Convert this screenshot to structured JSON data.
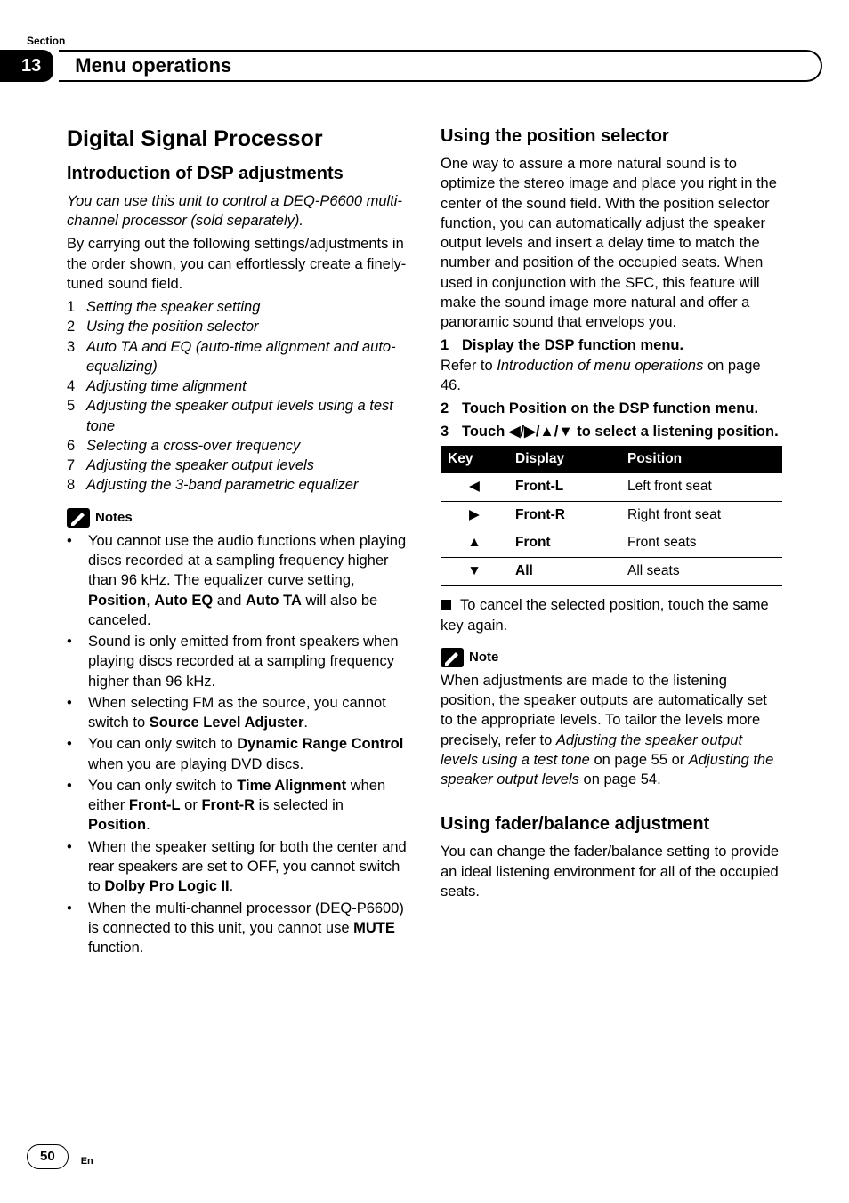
{
  "header": {
    "section_label": "Section",
    "section_number": "13",
    "title": "Menu operations"
  },
  "left": {
    "h1": "Digital Signal Processor",
    "h2": "Introduction of DSP adjustments",
    "intro_italic": "You can use this unit to control a DEQ-P6600 multi-channel processor (sold separately).",
    "intro_body": "By carrying out the following settings/adjustments in the order shown, you can effortlessly create a finely-tuned sound field.",
    "numbered": [
      "Setting the speaker setting",
      "Using the position selector",
      "Auto TA and EQ (auto-time alignment and auto-equalizing)",
      "Adjusting time alignment",
      "Adjusting the speaker output levels using a test tone",
      "Selecting a cross-over frequency",
      "Adjusting the speaker output levels",
      "Adjusting the 3-band parametric equalizer"
    ],
    "notes_label": "Notes",
    "notes": [
      {
        "pre": "You cannot use the audio functions when playing discs recorded at a sampling frequency higher than 96 kHz. The equalizer curve setting, ",
        "b1": "Position",
        "mid1": ", ",
        "b2": "Auto EQ",
        "mid2": " and ",
        "b3": "Auto TA",
        "post": " will also be canceled."
      },
      {
        "plain": "Sound is only emitted from front speakers when playing discs recorded at a sampling frequency higher than 96 kHz."
      },
      {
        "pre": "When selecting FM as the source, you cannot switch to ",
        "b1": "Source Level Adjuster",
        "post": "."
      },
      {
        "pre": "You can only switch to ",
        "b1": "Dynamic Range Control",
        "post": " when you are playing DVD discs."
      },
      {
        "pre": "You can only switch to ",
        "b1": "Time Alignment",
        "mid1": " when either ",
        "b2": "Front-L",
        "mid2": " or ",
        "b3": "Front-R",
        "mid3": " is selected in ",
        "b4": "Position",
        "post": "."
      },
      {
        "pre": "When the speaker setting for both the center and rear speakers are set to OFF, you cannot switch to ",
        "b1": "Dolby Pro Logic II",
        "post": "."
      },
      {
        "pre": "When the multi-channel processor (DEQ-P6600) is connected to this unit, you cannot use ",
        "b1": "MUTE",
        "post": " function."
      }
    ]
  },
  "right": {
    "h2a": "Using the position selector",
    "para_a": "One way to assure a more natural sound is to optimize the stereo image and place you right in the center of the sound field. With the position selector function, you can automatically adjust the speaker output levels and insert a delay time to match the number and position of the occupied seats. When used in conjunction with the SFC, this feature will make the sound image more natural and offer a panoramic sound that envelops you.",
    "step1_head": "Display the DSP function menu.",
    "step1_body_pre": "Refer to ",
    "step1_body_it": "Introduction of menu operations",
    "step1_body_post": " on page 46.",
    "step2_head": "Touch Position on the DSP function menu.",
    "step3_head": "Touch ◀/▶/▲/▼ to select a listening position.",
    "table": {
      "head": [
        "Key",
        "Display",
        "Position"
      ],
      "rows": [
        {
          "key": "◀",
          "display": "Front-L",
          "position": "Left front seat"
        },
        {
          "key": "▶",
          "display": "Front-R",
          "position": "Right front seat"
        },
        {
          "key": "▲",
          "display": "Front",
          "position": "Front seats"
        },
        {
          "key": "▼",
          "display": "All",
          "position": "All seats"
        }
      ]
    },
    "cancel_note": "To cancel the selected position, touch the same key again.",
    "note_label": "Note",
    "note_body_pre": "When adjustments are made to the listening position, the speaker outputs are automatically set to the appropriate levels. To tailor the levels more precisely, refer to ",
    "note_body_it1": "Adjusting the speaker output levels using a test tone",
    "note_body_mid": " on page 55 or ",
    "note_body_it2": "Adjusting the speaker output levels",
    "note_body_post": " on page 54.",
    "h2b": "Using fader/balance adjustment",
    "para_b": "You can change the fader/balance setting to provide an ideal listening environment for all of the occupied seats."
  },
  "footer": {
    "page": "50",
    "lang": "En"
  }
}
